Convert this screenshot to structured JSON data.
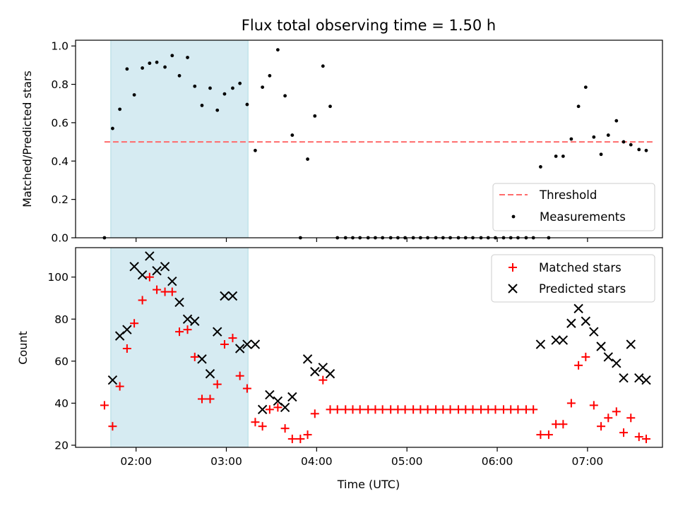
{
  "chart_data": [
    {
      "type": "scatter",
      "title": "Flux total observing time = 1.50 h",
      "ylabel": "Matched/Predicted stars",
      "xlabel": "",
      "xlim": [
        1.33,
        7.83
      ],
      "ylim": [
        0,
        1.03
      ],
      "yticks": [
        "0.0",
        "0.2",
        "0.4",
        "0.6",
        "0.8",
        "1.0"
      ],
      "grid": false,
      "legend_position": "lower-right",
      "shaded_span": [
        1.72,
        3.24
      ],
      "shaded_color": "#add8e6",
      "threshold": {
        "name": "Threshold",
        "value": 0.5,
        "x_range": [
          1.65,
          7.73
        ],
        "color": "#ff6b6b"
      },
      "series": [
        {
          "name": "Measurements",
          "color": "#000000",
          "points": [
            [
              1.65,
              0.0
            ],
            [
              1.74,
              0.57
            ],
            [
              1.82,
              0.67
            ],
            [
              1.9,
              0.88
            ],
            [
              1.98,
              0.745
            ],
            [
              2.07,
              0.885
            ],
            [
              2.15,
              0.91
            ],
            [
              2.23,
              0.915
            ],
            [
              2.32,
              0.89
            ],
            [
              2.4,
              0.95
            ],
            [
              2.48,
              0.845
            ],
            [
              2.57,
              0.94
            ],
            [
              2.65,
              0.79
            ],
            [
              2.73,
              0.69
            ],
            [
              2.82,
              0.78
            ],
            [
              2.9,
              0.665
            ],
            [
              2.98,
              0.75
            ],
            [
              3.07,
              0.78
            ],
            [
              3.15,
              0.805
            ],
            [
              3.23,
              0.695
            ],
            [
              3.32,
              0.455
            ],
            [
              3.4,
              0.785
            ],
            [
              3.48,
              0.845
            ],
            [
              3.57,
              0.98
            ],
            [
              3.65,
              0.74
            ],
            [
              3.73,
              0.535
            ],
            [
              3.82,
              0.0
            ],
            [
              3.9,
              0.41
            ],
            [
              3.98,
              0.635
            ],
            [
              4.07,
              0.895
            ],
            [
              4.15,
              0.685
            ],
            [
              4.23,
              0.0
            ],
            [
              4.32,
              0.0
            ],
            [
              4.4,
              0.0
            ],
            [
              4.48,
              0.0
            ],
            [
              4.57,
              0.0
            ],
            [
              4.65,
              0.0
            ],
            [
              4.73,
              0.0
            ],
            [
              4.82,
              0.0
            ],
            [
              4.9,
              0.0
            ],
            [
              4.98,
              0.0
            ],
            [
              5.07,
              0.0
            ],
            [
              5.15,
              0.0
            ],
            [
              5.23,
              0.0
            ],
            [
              5.32,
              0.0
            ],
            [
              5.4,
              0.0
            ],
            [
              5.48,
              0.0
            ],
            [
              5.57,
              0.0
            ],
            [
              5.65,
              0.0
            ],
            [
              5.73,
              0.0
            ],
            [
              5.82,
              0.0
            ],
            [
              5.9,
              0.0
            ],
            [
              5.98,
              0.0
            ],
            [
              6.07,
              0.0
            ],
            [
              6.15,
              0.0
            ],
            [
              6.23,
              0.0
            ],
            [
              6.32,
              0.0
            ],
            [
              6.4,
              0.0
            ],
            [
              6.48,
              0.37
            ],
            [
              6.57,
              0.0
            ],
            [
              6.65,
              0.425
            ],
            [
              6.73,
              0.425
            ],
            [
              6.82,
              0.515
            ],
            [
              6.9,
              0.685
            ],
            [
              6.98,
              0.785
            ],
            [
              7.07,
              0.525
            ],
            [
              7.15,
              0.435
            ],
            [
              7.23,
              0.535
            ],
            [
              7.32,
              0.61
            ],
            [
              7.4,
              0.5
            ],
            [
              7.48,
              0.485
            ],
            [
              7.57,
              0.46
            ],
            [
              7.65,
              0.455
            ]
          ]
        }
      ]
    },
    {
      "type": "scatter",
      "title": "",
      "ylabel": "Count",
      "xlabel": "Time (UTC)",
      "xlim": [
        1.33,
        7.83
      ],
      "ylim": [
        19,
        114
      ],
      "yticks": [
        "20",
        "40",
        "60",
        "80",
        "100"
      ],
      "xticks": [
        "02:00",
        "03:00",
        "04:00",
        "05:00",
        "06:00",
        "07:00"
      ],
      "grid": false,
      "legend_position": "upper-right",
      "shaded_span": [
        1.72,
        3.24
      ],
      "shaded_color": "#add8e6",
      "series": [
        {
          "name": "Matched stars",
          "color": "#ff0000",
          "marker": "plus",
          "points": [
            [
              1.65,
              39
            ],
            [
              1.74,
              29
            ],
            [
              1.82,
              48
            ],
            [
              1.9,
              66
            ],
            [
              1.98,
              78
            ],
            [
              2.07,
              89
            ],
            [
              2.15,
              100
            ],
            [
              2.23,
              94
            ],
            [
              2.32,
              93
            ],
            [
              2.4,
              93
            ],
            [
              2.48,
              74
            ],
            [
              2.57,
              75
            ],
            [
              2.65,
              62
            ],
            [
              2.73,
              42
            ],
            [
              2.82,
              42
            ],
            [
              2.9,
              49
            ],
            [
              2.98,
              68
            ],
            [
              3.07,
              71
            ],
            [
              3.15,
              53
            ],
            [
              3.23,
              47
            ],
            [
              3.32,
              31
            ],
            [
              3.4,
              29
            ],
            [
              3.48,
              37
            ],
            [
              3.57,
              38
            ],
            [
              3.65,
              28
            ],
            [
              3.73,
              23
            ],
            [
              3.82,
              23
            ],
            [
              3.9,
              25
            ],
            [
              3.98,
              35
            ],
            [
              4.07,
              51
            ],
            [
              4.15,
              37
            ],
            [
              4.23,
              37
            ],
            [
              4.32,
              37
            ],
            [
              4.4,
              37
            ],
            [
              4.48,
              37
            ],
            [
              4.57,
              37
            ],
            [
              4.65,
              37
            ],
            [
              4.73,
              37
            ],
            [
              4.82,
              37
            ],
            [
              4.9,
              37
            ],
            [
              4.98,
              37
            ],
            [
              5.07,
              37
            ],
            [
              5.15,
              37
            ],
            [
              5.23,
              37
            ],
            [
              5.32,
              37
            ],
            [
              5.4,
              37
            ],
            [
              5.48,
              37
            ],
            [
              5.57,
              37
            ],
            [
              5.65,
              37
            ],
            [
              5.73,
              37
            ],
            [
              5.82,
              37
            ],
            [
              5.9,
              37
            ],
            [
              5.98,
              37
            ],
            [
              6.07,
              37
            ],
            [
              6.15,
              37
            ],
            [
              6.23,
              37
            ],
            [
              6.32,
              37
            ],
            [
              6.4,
              37
            ],
            [
              6.48,
              25
            ],
            [
              6.57,
              25
            ],
            [
              6.65,
              30
            ],
            [
              6.73,
              30
            ],
            [
              6.82,
              40
            ],
            [
              6.9,
              58
            ],
            [
              6.98,
              62
            ],
            [
              7.07,
              39
            ],
            [
              7.15,
              29
            ],
            [
              7.23,
              33
            ],
            [
              7.32,
              36
            ],
            [
              7.4,
              26
            ],
            [
              7.48,
              33
            ],
            [
              7.57,
              24
            ],
            [
              7.65,
              23
            ]
          ]
        },
        {
          "name": "Predicted stars",
          "color": "#000000",
          "marker": "x",
          "points": [
            [
              1.74,
              51
            ],
            [
              1.82,
              72
            ],
            [
              1.9,
              75
            ],
            [
              1.98,
              105
            ],
            [
              2.07,
              101
            ],
            [
              2.15,
              110
            ],
            [
              2.23,
              103
            ],
            [
              2.32,
              105
            ],
            [
              2.4,
              98
            ],
            [
              2.48,
              88
            ],
            [
              2.57,
              80
            ],
            [
              2.65,
              79
            ],
            [
              2.73,
              61
            ],
            [
              2.82,
              54
            ],
            [
              2.9,
              74
            ],
            [
              2.98,
              91
            ],
            [
              3.07,
              91
            ],
            [
              3.15,
              66
            ],
            [
              3.23,
              68
            ],
            [
              3.32,
              68
            ],
            [
              3.4,
              37
            ],
            [
              3.48,
              44
            ],
            [
              3.57,
              41
            ],
            [
              3.65,
              38
            ],
            [
              3.73,
              43
            ],
            [
              3.9,
              61
            ],
            [
              3.98,
              55
            ],
            [
              4.07,
              57
            ],
            [
              4.15,
              54
            ],
            [
              6.48,
              68
            ],
            [
              6.65,
              70
            ],
            [
              6.73,
              70
            ],
            [
              6.82,
              78
            ],
            [
              6.9,
              85
            ],
            [
              6.98,
              79
            ],
            [
              7.07,
              74
            ],
            [
              7.15,
              67
            ],
            [
              7.23,
              62
            ],
            [
              7.32,
              59
            ],
            [
              7.4,
              52
            ],
            [
              7.48,
              68
            ],
            [
              7.57,
              52
            ],
            [
              7.65,
              51
            ]
          ]
        }
      ]
    }
  ]
}
